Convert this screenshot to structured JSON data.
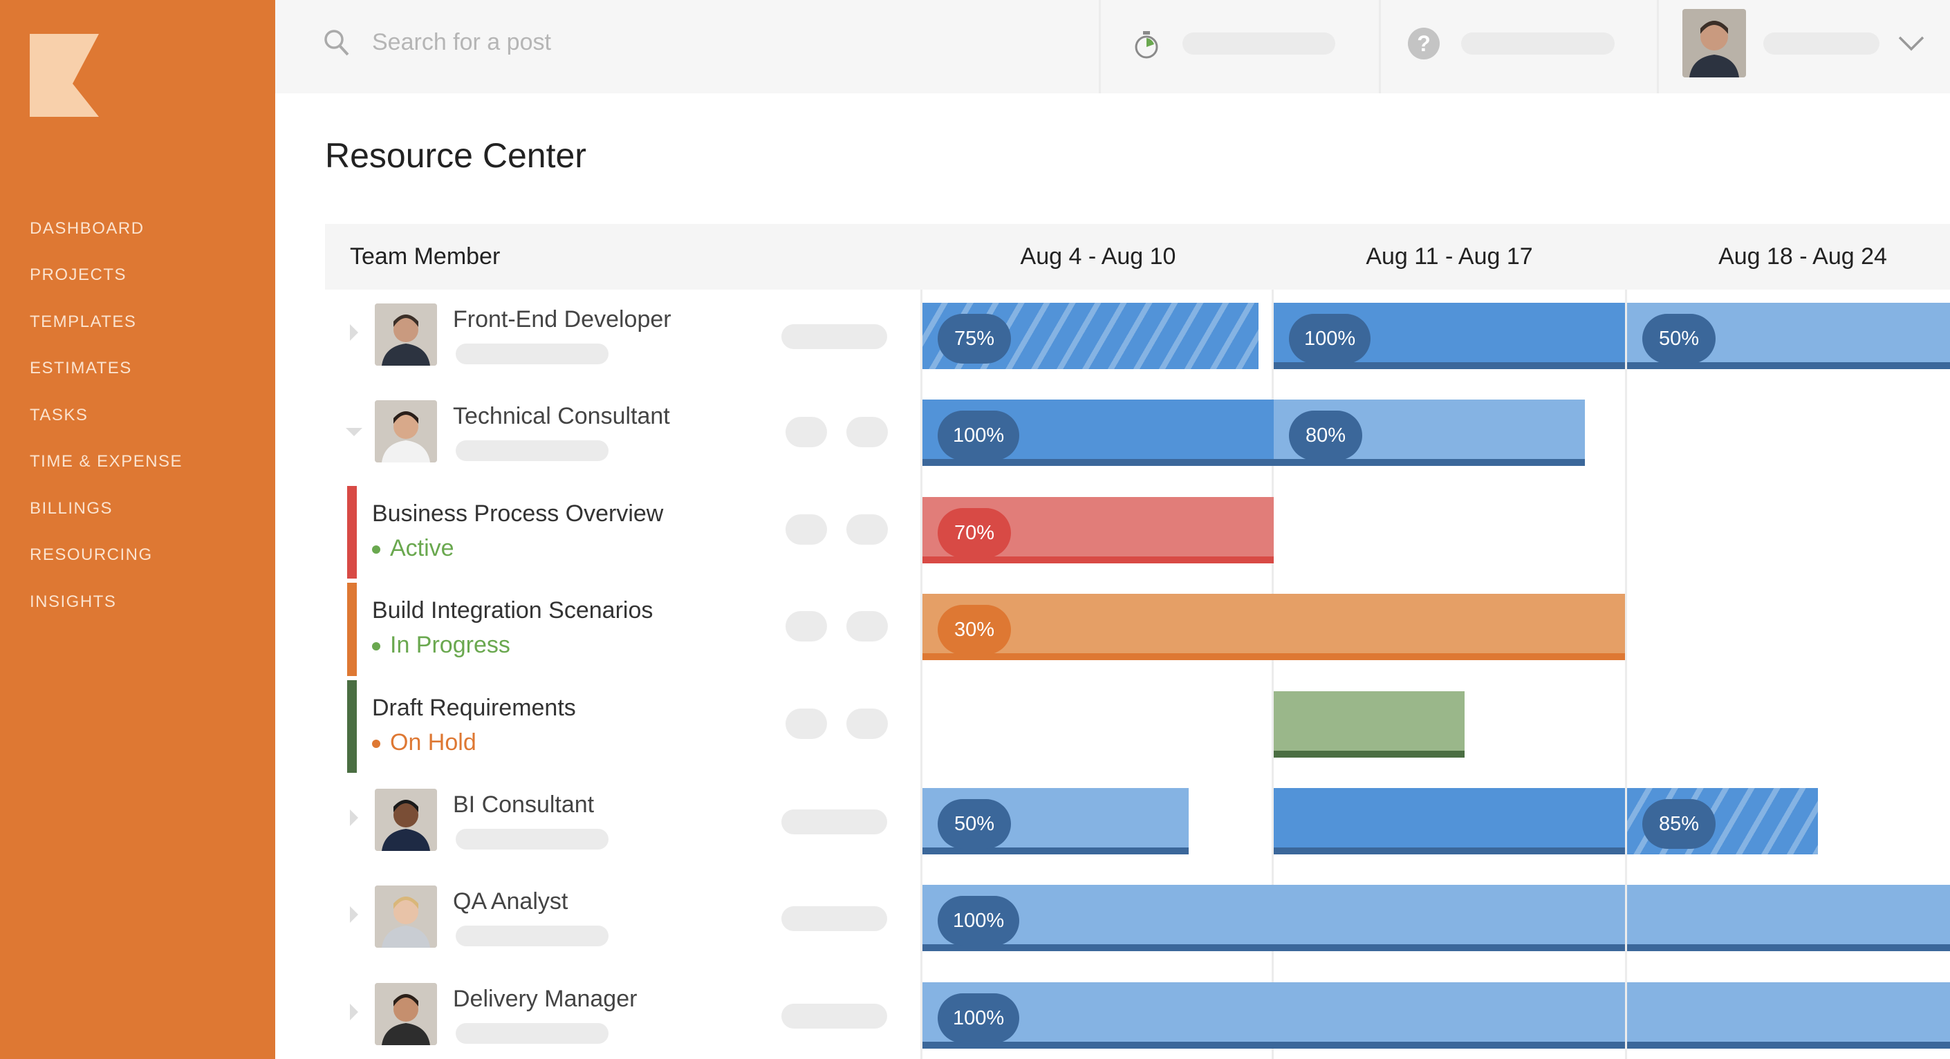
{
  "sidebar": {
    "logo": "K",
    "items": [
      {
        "label": "DASHBOARD"
      },
      {
        "label": "PROJECTS"
      },
      {
        "label": "TEMPLATES"
      },
      {
        "label": "ESTIMATES"
      },
      {
        "label": "TASKS"
      },
      {
        "label": "TIME & EXPENSE"
      },
      {
        "label": "BILLINGS"
      },
      {
        "label": "RESOURCING"
      },
      {
        "label": "INSIGHTS"
      }
    ]
  },
  "topbar": {
    "search_placeholder": "Search for a post",
    "icons": [
      "search-icon",
      "stopwatch-icon",
      "help-icon",
      "chevron-down-icon"
    ]
  },
  "page": {
    "title": "Resource Center"
  },
  "table": {
    "member_header": "Team Member",
    "weeks": [
      "Aug 4 - Aug 10",
      "Aug 11 - Aug 17",
      "Aug 18 - Aug 24"
    ],
    "days_per_week": 7,
    "colors": {
      "blue": "#5293d8",
      "light_blue": "#85b3e3",
      "blue_dark": "#3b679a",
      "red": "#e17d79",
      "red_dark": "#d84a45",
      "orange": "#e59f66",
      "orange_dark": "#de7833",
      "green": "#9ab78a",
      "green_dark": "#4a6e42",
      "active": "#6aa84f",
      "on_hold": "#de7833"
    },
    "rows": [
      {
        "type": "member",
        "name": "Front-End Developer",
        "expanded": false,
        "actions": "single",
        "bars": [
          {
            "week": 0,
            "days": 6.7,
            "style": "hatched",
            "label": "75%"
          },
          {
            "week": 1,
            "days": 7,
            "style": "blue",
            "label": "100%"
          },
          {
            "week": 2,
            "days": 7,
            "style": "light_blue",
            "label": "50%"
          }
        ]
      },
      {
        "type": "member",
        "name": "Technical Consultant",
        "expanded": true,
        "actions": "double",
        "bars": [
          {
            "week": 0,
            "days": 7,
            "style": "blue",
            "label": "100%"
          },
          {
            "week": 1,
            "days": 6.2,
            "style": "light_blue",
            "label": "80%"
          }
        ]
      },
      {
        "type": "task",
        "name": "Business Process Overview",
        "status": "Active",
        "status_color": "active",
        "accent": "red_dark",
        "actions": "double",
        "bars": [
          {
            "week": 0,
            "days": 7,
            "style": "red",
            "label": "70%"
          }
        ]
      },
      {
        "type": "task",
        "name": "Build Integration Scenarios",
        "status": "In Progress",
        "status_color": "active",
        "accent": "orange_dark",
        "actions": "double",
        "bars": [
          {
            "week": 0,
            "days": 7,
            "style": "orange",
            "label": "30%"
          },
          {
            "week": 1,
            "days": 7,
            "style": "orange",
            "label": ""
          }
        ]
      },
      {
        "type": "task",
        "name": "Draft Requirements",
        "status": "On Hold",
        "status_color": "on_hold",
        "accent": "green_dark",
        "actions": "double",
        "bars": [
          {
            "week": 1,
            "days": 3.8,
            "style": "green",
            "label": ""
          }
        ]
      },
      {
        "type": "member",
        "name": "BI Consultant",
        "expanded": false,
        "actions": "single",
        "bars": [
          {
            "week": 0,
            "days": 5.3,
            "style": "light_blue",
            "label": "50%"
          },
          {
            "week": 1,
            "days": 7,
            "style": "blue",
            "label": ""
          },
          {
            "week": 2,
            "days": 3.8,
            "style": "hatched",
            "label": "85%"
          }
        ]
      },
      {
        "type": "member",
        "name": "QA Analyst",
        "expanded": false,
        "actions": "single",
        "bars": [
          {
            "week": 0,
            "days": 7,
            "style": "light_blue",
            "label": "100%"
          },
          {
            "week": 1,
            "days": 7,
            "style": "light_blue",
            "label": ""
          },
          {
            "week": 2,
            "days": 7,
            "style": "light_blue",
            "label": ""
          }
        ]
      },
      {
        "type": "member",
        "name": "Delivery Manager",
        "expanded": false,
        "actions": "single",
        "bars": [
          {
            "week": 0,
            "days": 7,
            "style": "light_blue",
            "label": "100%"
          },
          {
            "week": 1,
            "days": 7,
            "style": "light_blue",
            "label": ""
          },
          {
            "week": 2,
            "days": 7,
            "style": "light_blue",
            "label": ""
          }
        ]
      }
    ]
  }
}
